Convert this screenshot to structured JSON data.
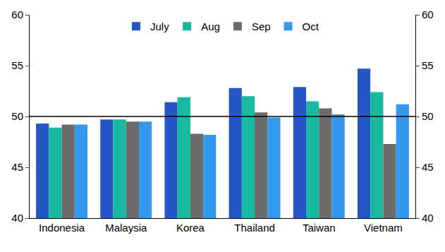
{
  "chart_data": {
    "type": "bar",
    "categories": [
      "Indonesia",
      "Malaysia",
      "Korea",
      "Thailand",
      "Taiwan",
      "Vietnam"
    ],
    "series": [
      {
        "name": "July",
        "color": "#2457c5",
        "values": [
          49.3,
          49.7,
          51.4,
          52.8,
          52.9,
          54.7
        ]
      },
      {
        "name": "Aug",
        "color": "#19b8a0",
        "values": [
          48.9,
          49.7,
          51.9,
          52.0,
          51.5,
          52.4
        ]
      },
      {
        "name": "Sep",
        "color": "#6b6b6b",
        "values": [
          49.2,
          49.5,
          48.3,
          50.4,
          50.8,
          47.3
        ]
      },
      {
        "name": "Oct",
        "color": "#3399ee",
        "values": [
          49.2,
          49.5,
          48.2,
          49.9,
          50.2,
          51.2
        ]
      }
    ],
    "ylim": [
      40,
      60
    ],
    "yticks": [
      40,
      45,
      50,
      55,
      60
    ],
    "y2lim": [
      40,
      60
    ],
    "y2ticks": [
      40,
      45,
      50,
      55,
      60
    ],
    "reference_line": 50,
    "grid": false,
    "legend": "top"
  }
}
